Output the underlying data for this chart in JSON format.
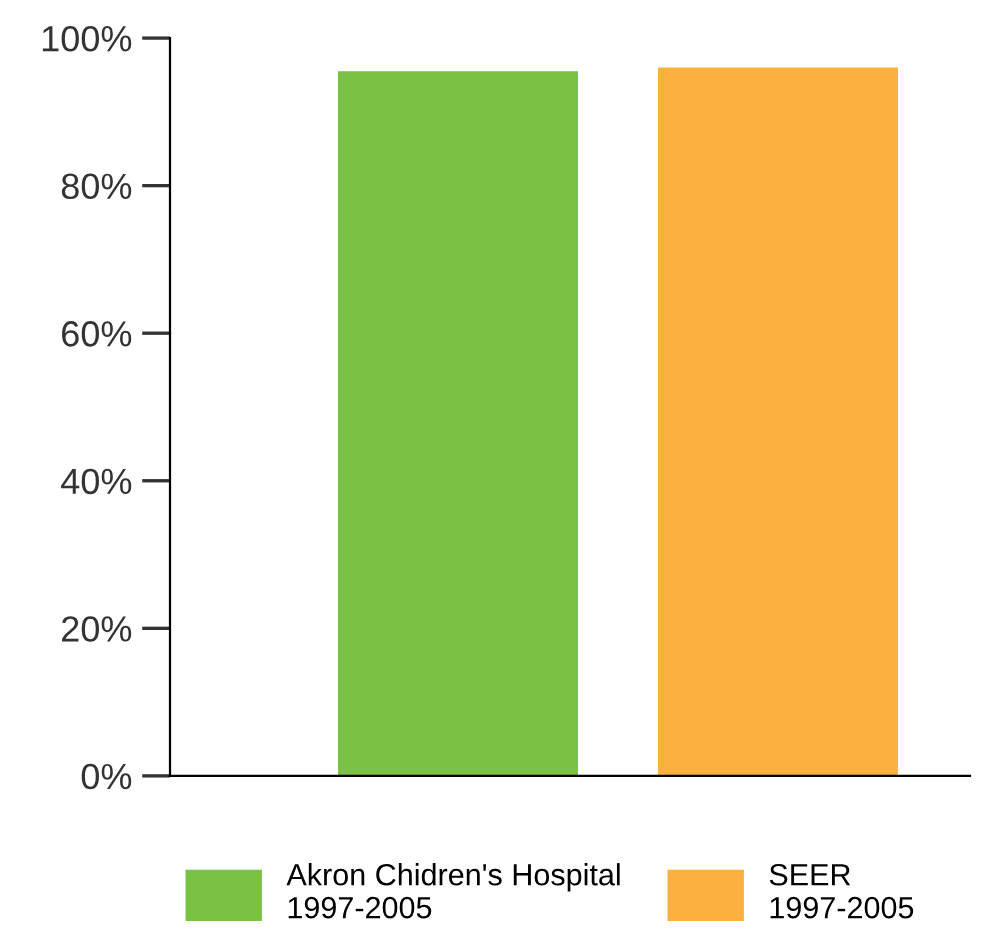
{
  "chart_data": {
    "type": "bar",
    "categories": [
      null,
      null
    ],
    "series": [
      {
        "name": "Akron Chidren's Hospital\n1997-2005",
        "color": "#7bc143",
        "values": [
          95.5,
          null
        ]
      },
      {
        "name": "SEER\n1997-2005",
        "color": "#fbb040",
        "values": [
          null,
          96
        ]
      }
    ],
    "ylim": [
      0,
      100
    ],
    "yticks": [
      {
        "value": 0,
        "label": "0%"
      },
      {
        "value": 20,
        "label": "20%"
      },
      {
        "value": 40,
        "label": "40%"
      },
      {
        "value": 60,
        "label": "60%"
      },
      {
        "value": 80,
        "label": "80%"
      },
      {
        "value": 100,
        "label": "100%"
      }
    ],
    "grid": false,
    "legend": "bottom"
  }
}
